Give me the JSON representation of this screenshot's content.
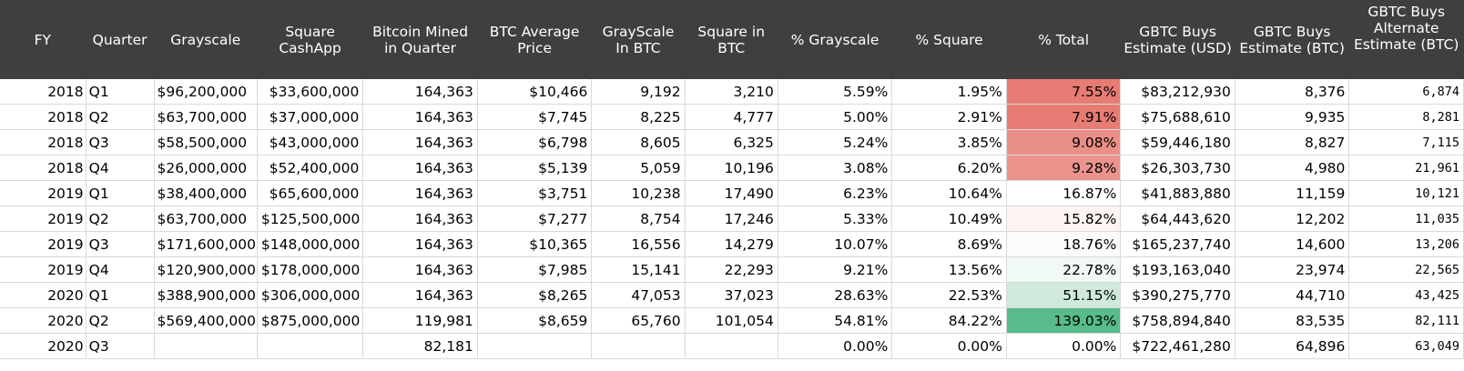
{
  "columns": [
    "FY",
    "Quarter",
    "Grayscale",
    "Square CashApp",
    "Bitcoin Mined in Quarter",
    "BTC Average Price",
    "GrayScale In BTC",
    "Square in BTC",
    "% Grayscale",
    "% Square",
    "% Total",
    "GBTC Buys Estimate (USD)",
    "GBTC Buys Estimate (BTC)",
    "GBTC Buys Alternate Estimate (BTC)"
  ],
  "rows": [
    {
      "fy": "2018",
      "quarter": "Q1",
      "grayscale": "$96,200,000",
      "square": "$33,600,000",
      "mined": "164,363",
      "avg_price": "$10,466",
      "gs_btc": "9,192",
      "sq_btc": "3,210",
      "pct_gs": "5.59%",
      "pct_sq": "1.95%",
      "pct_total": "7.55%",
      "total_color": "#e67c73",
      "usd_est": "$83,212,930",
      "btc_est": "8,376",
      "alt_est": "6,874"
    },
    {
      "fy": "2018",
      "quarter": "Q2",
      "grayscale": "$63,700,000",
      "square": "$37,000,000",
      "mined": "164,363",
      "avg_price": "$7,745",
      "gs_btc": "8,225",
      "sq_btc": "4,777",
      "pct_gs": "5.00%",
      "pct_sq": "2.91%",
      "pct_total": "7.91%",
      "total_color": "#e67c73",
      "usd_est": "$75,688,610",
      "btc_est": "9,935",
      "alt_est": "8,281"
    },
    {
      "fy": "2018",
      "quarter": "Q3",
      "grayscale": "$58,500,000",
      "square": "$43,000,000",
      "mined": "164,363",
      "avg_price": "$6,798",
      "gs_btc": "8,605",
      "sq_btc": "6,325",
      "pct_gs": "5.24%",
      "pct_sq": "3.85%",
      "pct_total": "9.08%",
      "total_color": "#e98f87",
      "usd_est": "$59,446,180",
      "btc_est": "8,827",
      "alt_est": "7,115"
    },
    {
      "fy": "2018",
      "quarter": "Q4",
      "grayscale": "$26,000,000",
      "square": "$52,400,000",
      "mined": "164,363",
      "avg_price": "$5,139",
      "gs_btc": "5,059",
      "sq_btc": "10,196",
      "pct_gs": "3.08%",
      "pct_sq": "6.20%",
      "pct_total": "9.28%",
      "total_color": "#ea948d",
      "usd_est": "$26,303,730",
      "btc_est": "4,980",
      "alt_est": "21,961"
    },
    {
      "fy": "2019",
      "quarter": "Q1",
      "grayscale": "$38,400,000",
      "square": "$65,600,000",
      "mined": "164,363",
      "avg_price": "$3,751",
      "gs_btc": "10,238",
      "sq_btc": "17,490",
      "pct_gs": "6.23%",
      "pct_sq": "10.64%",
      "pct_total": "16.87%",
      "total_color": "#ffffff",
      "usd_est": "$41,883,880",
      "btc_est": "11,159",
      "alt_est": "10,121"
    },
    {
      "fy": "2019",
      "quarter": "Q2",
      "grayscale": "$63,700,000",
      "square": "$125,500,000",
      "mined": "164,363",
      "avg_price": "$7,277",
      "gs_btc": "8,754",
      "sq_btc": "17,246",
      "pct_gs": "5.33%",
      "pct_sq": "10.49%",
      "pct_total": "15.82%",
      "total_color": "#fdf4f3",
      "usd_est": "$64,443,620",
      "btc_est": "12,202",
      "alt_est": "11,035"
    },
    {
      "fy": "2019",
      "quarter": "Q3",
      "grayscale": "$171,600,000",
      "square": "$148,000,000",
      "mined": "164,363",
      "avg_price": "$10,365",
      "gs_btc": "16,556",
      "sq_btc": "14,279",
      "pct_gs": "10.07%",
      "pct_sq": "8.69%",
      "pct_total": "18.76%",
      "total_color": "#f9fcfa",
      "usd_est": "$165,237,740",
      "btc_est": "14,600",
      "alt_est": "13,206"
    },
    {
      "fy": "2019",
      "quarter": "Q4",
      "grayscale": "$120,900,000",
      "square": "$178,000,000",
      "mined": "164,363",
      "avg_price": "$7,985",
      "gs_btc": "15,141",
      "sq_btc": "22,293",
      "pct_gs": "9.21%",
      "pct_sq": "13.56%",
      "pct_total": "22.78%",
      "total_color": "#f1f9f4",
      "usd_est": "$193,163,040",
      "btc_est": "23,974",
      "alt_est": "22,565"
    },
    {
      "fy": "2020",
      "quarter": "Q1",
      "grayscale": "$388,900,000",
      "square": "$306,000,000",
      "mined": "164,363",
      "avg_price": "$8,265",
      "gs_btc": "47,053",
      "sq_btc": "37,023",
      "pct_gs": "28.63%",
      "pct_sq": "22.53%",
      "pct_total": "51.15%",
      "total_color": "#cfeadb",
      "usd_est": "$390,275,770",
      "btc_est": "44,710",
      "alt_est": "43,425"
    },
    {
      "fy": "2020",
      "quarter": "Q2",
      "grayscale": "$569,400,000",
      "square": "$875,000,000",
      "mined": "119,981",
      "avg_price": "$8,659",
      "gs_btc": "65,760",
      "sq_btc": "101,054",
      "pct_gs": "54.81%",
      "pct_sq": "84.22%",
      "pct_total": "139.03%",
      "total_color": "#57bb8a",
      "usd_est": "$758,894,840",
      "btc_est": "83,535",
      "alt_est": "82,111"
    },
    {
      "fy": "2020",
      "quarter": "Q3",
      "grayscale": "",
      "square": "",
      "mined": "82,181",
      "avg_price": "",
      "gs_btc": "",
      "sq_btc": "",
      "pct_gs": "0.00%",
      "pct_sq": "0.00%",
      "pct_total": "0.00%",
      "total_color": "#ffffff",
      "usd_est": "$722,461,280",
      "btc_est": "64,896",
      "alt_est": "63,049"
    }
  ]
}
